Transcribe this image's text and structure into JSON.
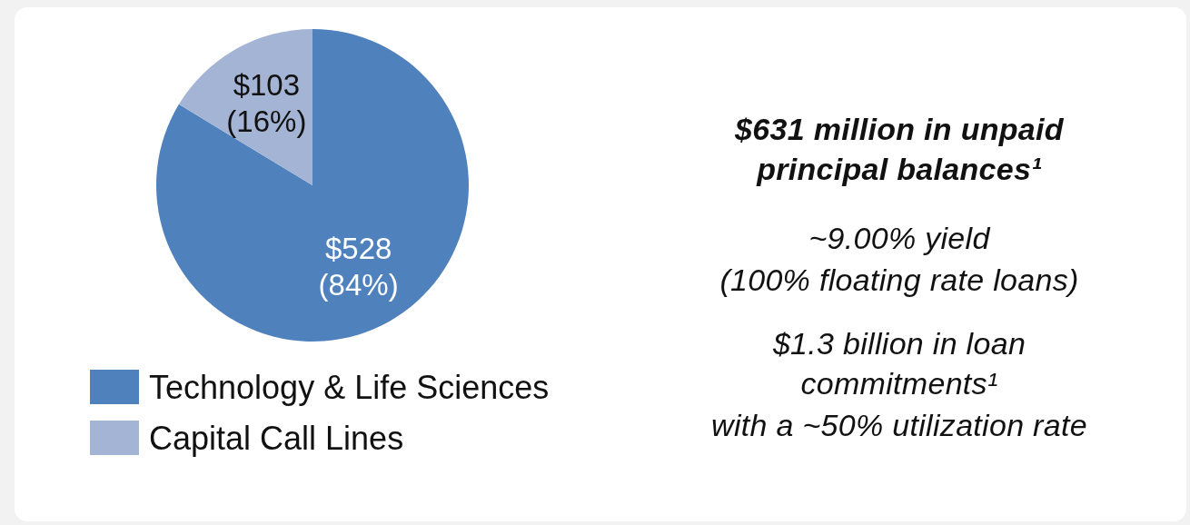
{
  "chart_data": {
    "type": "pie",
    "categories": [
      "Technology & Life Sciences",
      "Capital Call Lines"
    ],
    "values": [
      528,
      103
    ],
    "colors": [
      "#4f81bd",
      "#a3b4d4"
    ],
    "value_labels": [
      "$528 (84%)",
      "$103 (16%)"
    ],
    "legend": "bottom",
    "annotations": [
      "$631 million in unpaid principal balances¹",
      "~9.00% yield",
      "(100% floating rate loans)",
      "$1.3 billion in loan commitments¹",
      "with a ~50% utilization rate"
    ]
  }
}
